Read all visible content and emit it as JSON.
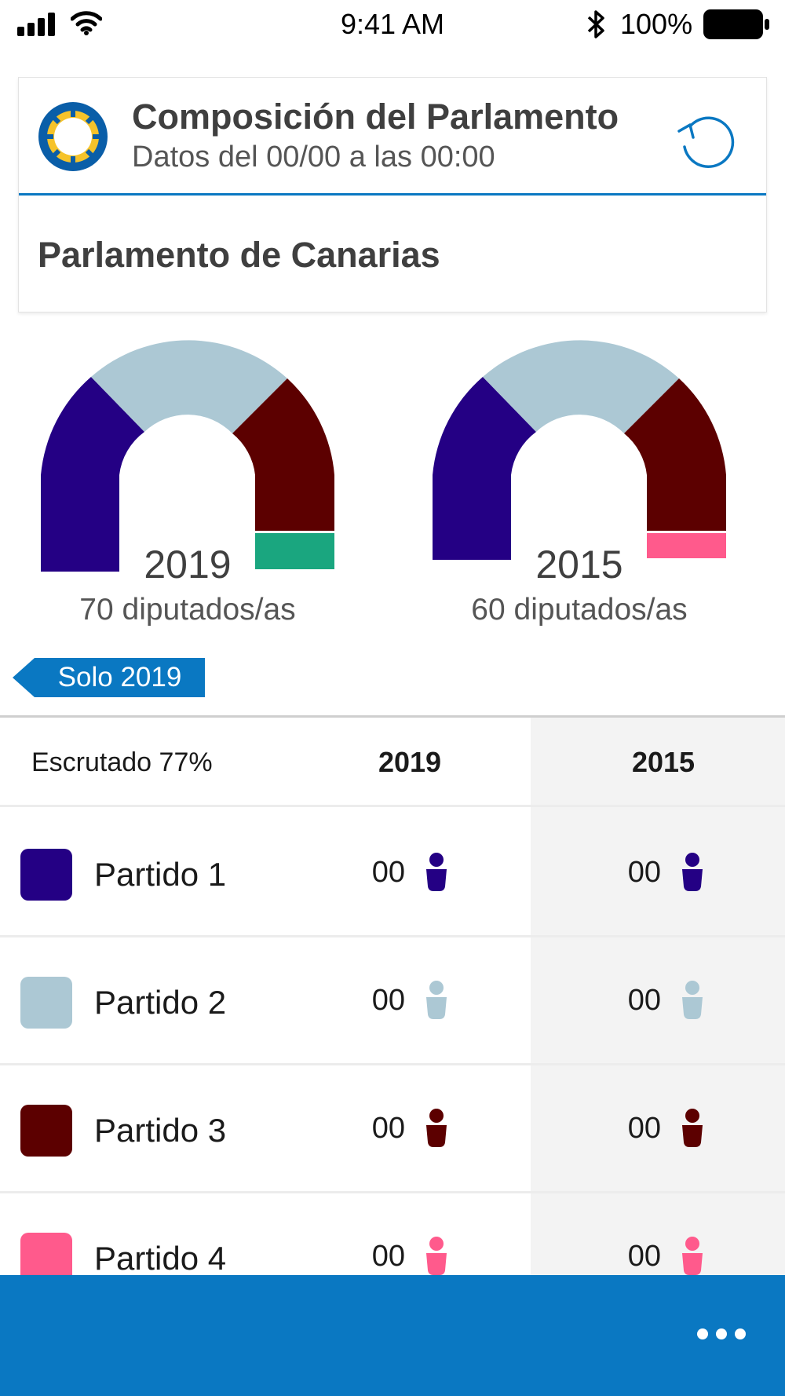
{
  "status_bar": {
    "time": "9:41 AM",
    "battery": "100%"
  },
  "header": {
    "title": "Composición del Parlamento",
    "subtitle": "Datos del 00/00 a las 00:00",
    "section": "Parlamento de Canarias"
  },
  "hemicycles": [
    {
      "year": "2019",
      "seats_label": "70 diputados/as",
      "segments": [
        "#240084",
        "#acc8d4",
        "#5c0000",
        "#1aa67f"
      ]
    },
    {
      "year": "2015",
      "seats_label": "60 diputados/as",
      "segments": [
        "#240084",
        "#acc8d4",
        "#5c0000",
        "#ff5a8c"
      ]
    }
  ],
  "filter_tag": "Solo 2019",
  "table": {
    "scrutiny": "Escrutado 77%",
    "col_2019": "2019",
    "col_2015": "2015",
    "rows": [
      {
        "party": "Partido 1",
        "color": "#240084",
        "seats_2019": "00",
        "seats_2015": "00"
      },
      {
        "party": "Partido 2",
        "color": "#acc8d4",
        "seats_2019": "00",
        "seats_2015": "00"
      },
      {
        "party": "Partido 3",
        "color": "#5c0000",
        "seats_2019": "00",
        "seats_2015": "00"
      },
      {
        "party": "Partido 4",
        "color": "#ff5a8c",
        "seats_2019": "00",
        "seats_2015": "00"
      }
    ]
  },
  "icons": {
    "refresh": "refresh-icon",
    "more": "more-dots-icon",
    "person": "person-icon"
  },
  "colors": {
    "accent": "#0a78c2"
  }
}
